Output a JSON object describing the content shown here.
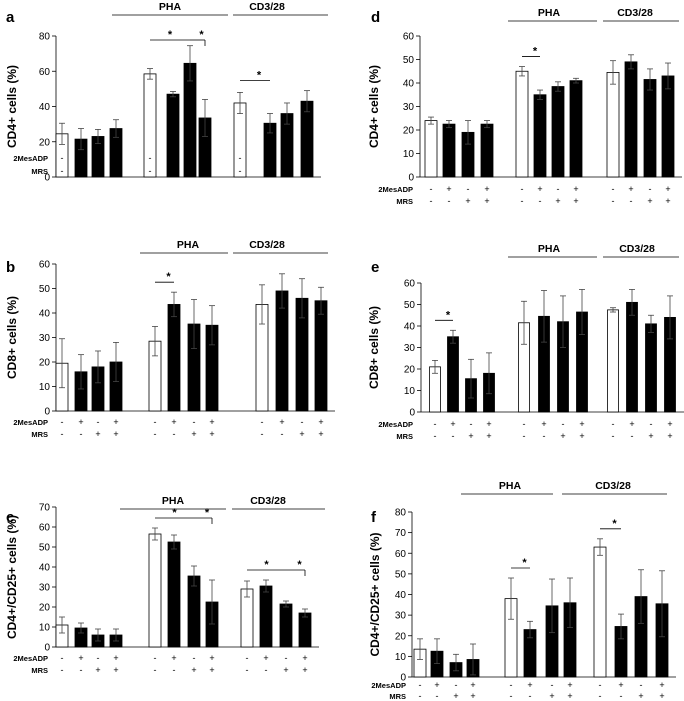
{
  "chart_data": [
    {
      "panel": "a",
      "type": "bar",
      "ylabel": "CD4+ cells (%)",
      "ylim": [
        0,
        80
      ],
      "yticks": [
        0,
        20,
        40,
        60,
        80
      ],
      "groups": [
        "",
        "PHA",
        "CD3/28"
      ],
      "row_labels": [
        "2MesADP",
        "MRS"
      ],
      "conditions": [
        {
          "2MesADP": "-",
          "MRS": "-"
        },
        {
          "2MesADP": "+",
          "MRS": "-"
        },
        {
          "2MesADP": "-",
          "MRS": "+"
        },
        {
          "2MesADP": "+",
          "MRS": "+"
        }
      ],
      "series": [
        {
          "group": "",
          "values": [
            24.5,
            21.5,
            23,
            27.5
          ],
          "errors": [
            6,
            6,
            4,
            5
          ]
        },
        {
          "group": "PHA",
          "values": [
            58.5,
            47,
            64.5,
            33.5
          ],
          "errors": [
            3,
            1.5,
            10,
            10.5
          ]
        },
        {
          "group": "CD3/28",
          "values": [
            42,
            30.5,
            36,
            43
          ],
          "errors": [
            6,
            5.5,
            6,
            6
          ]
        }
      ],
      "significance": [
        {
          "group": "PHA",
          "from": 0,
          "to": 2,
          "label": "*"
        },
        {
          "group": "PHA",
          "from": 2,
          "to": 3,
          "label": "*"
        },
        {
          "group": "CD3/28",
          "from": 0,
          "to": 1,
          "label": "*"
        }
      ]
    },
    {
      "panel": "b",
      "type": "bar",
      "ylabel": "CD8+ cells (%)",
      "ylim": [
        0,
        60
      ],
      "yticks": [
        0,
        10,
        20,
        30,
        40,
        50,
        60
      ],
      "groups": [
        "",
        "PHA",
        "CD3/28"
      ],
      "row_labels": [
        "2MesADP",
        "MRS"
      ],
      "conditions": [
        {
          "2MesADP": "-",
          "MRS": "-"
        },
        {
          "2MesADP": "+",
          "MRS": "-"
        },
        {
          "2MesADP": "-",
          "MRS": "+"
        },
        {
          "2MesADP": "+",
          "MRS": "+"
        }
      ],
      "series": [
        {
          "group": "",
          "values": [
            19.5,
            16,
            18,
            20
          ],
          "errors": [
            10,
            7,
            6.5,
            8
          ]
        },
        {
          "group": "PHA",
          "values": [
            28.5,
            43.5,
            35.5,
            35
          ],
          "errors": [
            6,
            5,
            10,
            8
          ]
        },
        {
          "group": "CD3/28",
          "values": [
            43.5,
            49,
            46,
            45
          ],
          "errors": [
            8,
            7,
            8,
            5.5
          ]
        }
      ],
      "significance": [
        {
          "group": "PHA",
          "from": 0,
          "to": 1,
          "label": "*"
        }
      ]
    },
    {
      "panel": "c",
      "type": "bar",
      "ylabel": "CD4+/CD25+ cells (%)",
      "ylim": [
        0,
        70
      ],
      "yticks": [
        0,
        10,
        20,
        30,
        40,
        50,
        60,
        70
      ],
      "groups": [
        "",
        "PHA",
        "CD3/28"
      ],
      "row_labels": [
        "2MesADP",
        "MRS"
      ],
      "conditions": [
        {
          "2MesADP": "-",
          "MRS": "-"
        },
        {
          "2MesADP": "+",
          "MRS": "-"
        },
        {
          "2MesADP": "-",
          "MRS": "+"
        },
        {
          "2MesADP": "+",
          "MRS": "+"
        }
      ],
      "series": [
        {
          "group": "",
          "values": [
            11,
            9.5,
            6,
            6
          ],
          "errors": [
            4,
            2.5,
            3,
            3
          ]
        },
        {
          "group": "PHA",
          "values": [
            56.5,
            52.5,
            35.5,
            22.5
          ],
          "errors": [
            3,
            3.5,
            5,
            11
          ]
        },
        {
          "group": "CD3/28",
          "values": [
            29,
            30.5,
            21.5,
            17
          ],
          "errors": [
            4,
            3,
            1.5,
            2
          ]
        }
      ],
      "significance": [
        {
          "group": "PHA",
          "from": 0,
          "to": 2,
          "label": "*"
        },
        {
          "group": "PHA",
          "from": 2,
          "to": 3,
          "label": "*"
        },
        {
          "group": "CD3/28",
          "from": 0,
          "to": 2,
          "label": "*"
        },
        {
          "group": "CD3/28",
          "from": 2,
          "to": 3,
          "label": "*"
        }
      ]
    },
    {
      "panel": "d",
      "type": "bar",
      "ylabel": "CD4+ cells (%)",
      "ylim": [
        0,
        60
      ],
      "yticks": [
        0,
        10,
        20,
        30,
        40,
        50,
        60
      ],
      "groups": [
        "",
        "PHA",
        "CD3/28"
      ],
      "row_labels": [
        "2MesADP",
        "MRS"
      ],
      "conditions": [
        {
          "2MesADP": "-",
          "MRS": "-"
        },
        {
          "2MesADP": "+",
          "MRS": "-"
        },
        {
          "2MesADP": "-",
          "MRS": "+"
        },
        {
          "2MesADP": "+",
          "MRS": "+"
        }
      ],
      "series": [
        {
          "group": "",
          "values": [
            24,
            22.5,
            19,
            22.5
          ],
          "errors": [
            1.5,
            1.5,
            5,
            1.5
          ]
        },
        {
          "group": "PHA",
          "values": [
            45,
            35,
            38.5,
            41
          ],
          "errors": [
            2,
            2,
            2,
            1
          ]
        },
        {
          "group": "CD3/28",
          "values": [
            44.5,
            49,
            41.5,
            43
          ],
          "errors": [
            5,
            3,
            4.5,
            5.5
          ]
        }
      ],
      "significance": [
        {
          "group": "PHA",
          "from": 0,
          "to": 1,
          "label": "*"
        }
      ]
    },
    {
      "panel": "e",
      "type": "bar",
      "ylabel": "CD8+ cells (%)",
      "ylim": [
        0,
        60
      ],
      "yticks": [
        0,
        10,
        20,
        30,
        40,
        50,
        60
      ],
      "groups": [
        "",
        "PHA",
        "CD3/28"
      ],
      "row_labels": [
        "2MesADP",
        "MRS"
      ],
      "conditions": [
        {
          "2MesADP": "-",
          "MRS": "-"
        },
        {
          "2MesADP": "+",
          "MRS": "-"
        },
        {
          "2MesADP": "-",
          "MRS": "+"
        },
        {
          "2MesADP": "+",
          "MRS": "+"
        }
      ],
      "series": [
        {
          "group": "",
          "values": [
            21,
            35,
            15.5,
            18
          ],
          "errors": [
            3,
            3,
            9,
            9.5
          ]
        },
        {
          "group": "PHA",
          "values": [
            41.5,
            44.5,
            42,
            46.5
          ],
          "errors": [
            10,
            12,
            12,
            10.5
          ]
        },
        {
          "group": "CD3/28",
          "values": [
            47.5,
            51,
            41,
            44
          ],
          "errors": [
            1,
            6,
            4,
            10
          ]
        }
      ],
      "significance": [
        {
          "group": "",
          "from": 0,
          "to": 1,
          "label": "*"
        }
      ]
    },
    {
      "panel": "f",
      "type": "bar",
      "ylabel": "CD4+/CD25+ cells (%)",
      "ylim": [
        0,
        80
      ],
      "yticks": [
        0,
        10,
        20,
        30,
        40,
        50,
        60,
        70,
        80
      ],
      "groups": [
        "",
        "PHA",
        "CD3/28"
      ],
      "row_labels": [
        "2MesADP",
        "MRS"
      ],
      "conditions": [
        {
          "2MesADP": "-",
          "MRS": "-"
        },
        {
          "2MesADP": "+",
          "MRS": "-"
        },
        {
          "2MesADP": "-",
          "MRS": "+"
        },
        {
          "2MesADP": "+",
          "MRS": "+"
        }
      ],
      "series": [
        {
          "group": "",
          "values": [
            13.5,
            12.5,
            7,
            8.5
          ],
          "errors": [
            5,
            6,
            4,
            7.5
          ]
        },
        {
          "group": "PHA",
          "values": [
            38,
            23,
            34.5,
            36
          ],
          "errors": [
            10,
            4,
            13,
            12
          ]
        },
        {
          "group": "CD3/28",
          "values": [
            63,
            24.5,
            39,
            35.5
          ],
          "errors": [
            4,
            6,
            13,
            16
          ]
        }
      ],
      "significance": [
        {
          "group": "PHA",
          "from": 0,
          "to": 1,
          "label": "*"
        },
        {
          "group": "CD3/28",
          "from": 0,
          "to": 1,
          "label": "*"
        }
      ]
    }
  ]
}
